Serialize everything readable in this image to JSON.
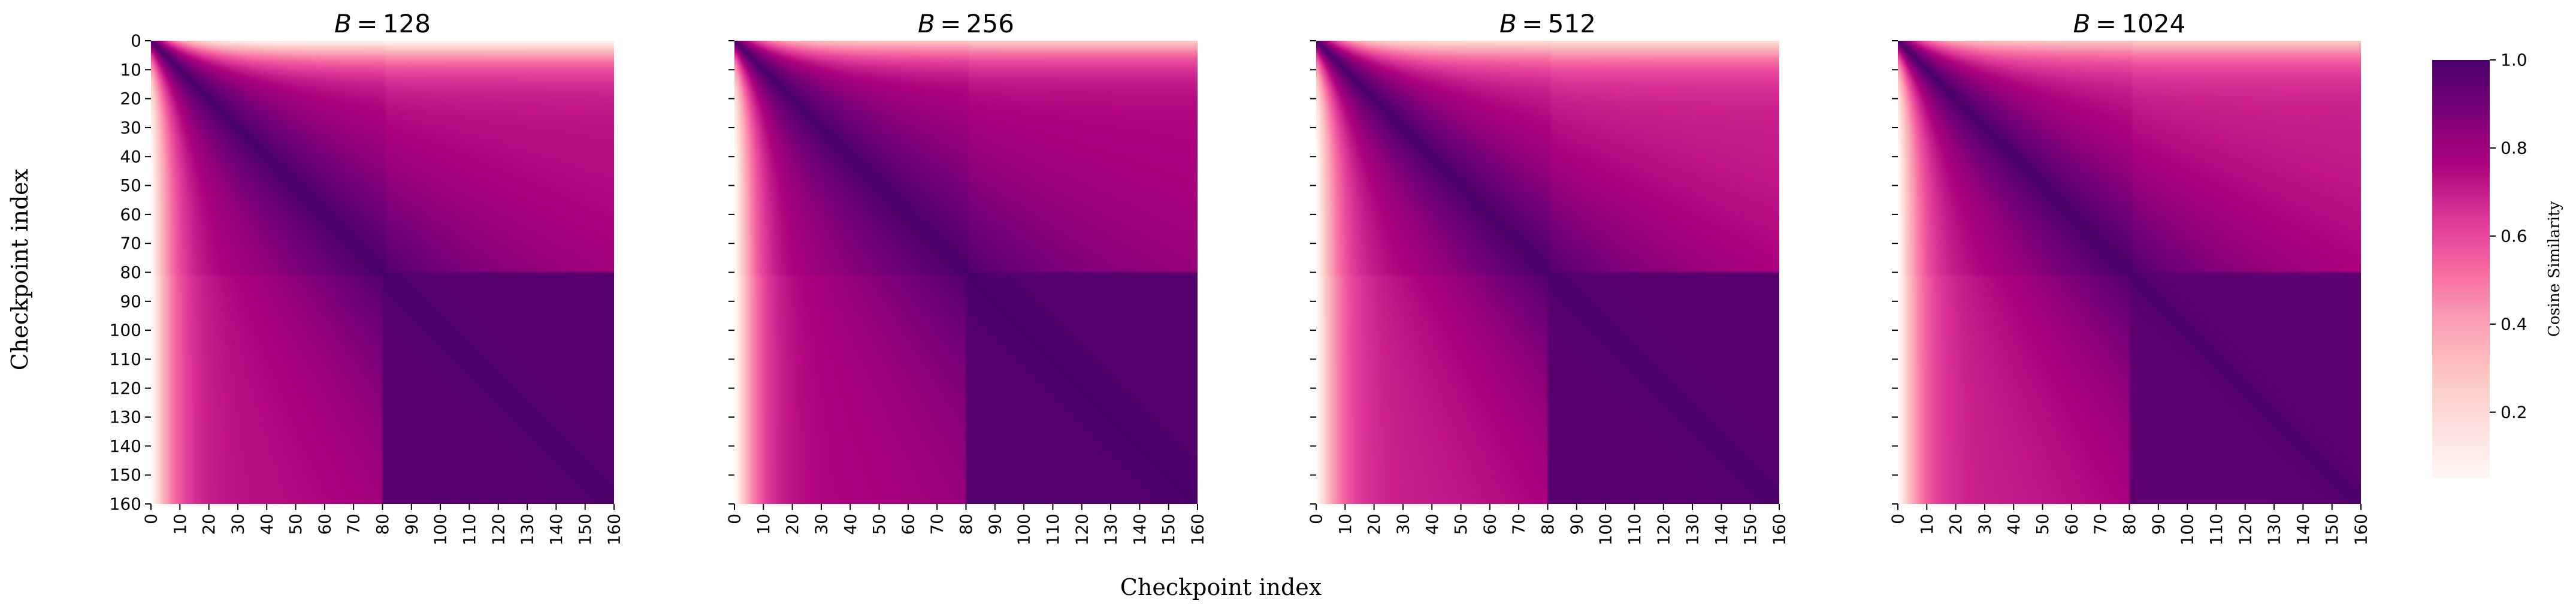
{
  "figure": {
    "ylabel": "Checkpoint index",
    "xlabel": "Checkpoint index"
  },
  "chart_data": [
    {
      "type": "heatmap",
      "title_var": "B",
      "title_value": "128",
      "xlabel": "Checkpoint index",
      "ylabel": "Checkpoint index",
      "n": 160,
      "switch_index": 80,
      "x_ticks": [
        "0",
        "10",
        "20",
        "30",
        "40",
        "50",
        "60",
        "70",
        "80",
        "90",
        "100",
        "110",
        "120",
        "130",
        "140",
        "150",
        "160"
      ],
      "y_ticks": [
        "0",
        "10",
        "20",
        "30",
        "40",
        "50",
        "60",
        "70",
        "80",
        "90",
        "100",
        "110",
        "120",
        "130",
        "140",
        "150",
        "160"
      ],
      "y_tick_labels_shown": true,
      "approx_similarity": {
        "row0_far": 0.1,
        "col0_far": 0.05,
        "diagonal": 1.0,
        "phase2_block": 0.97,
        "early_vs_late_plateau": 0.75
      }
    },
    {
      "type": "heatmap",
      "title_var": "B",
      "title_value": "256",
      "n": 160,
      "switch_index": 80,
      "x_ticks": [
        "0",
        "10",
        "20",
        "30",
        "40",
        "50",
        "60",
        "70",
        "80",
        "90",
        "100",
        "110",
        "120",
        "130",
        "140",
        "150",
        "160"
      ],
      "y_tick_labels_shown": false,
      "approx_similarity": {
        "row0_far": 0.3,
        "col0_far": 0.05,
        "diagonal": 1.0,
        "phase2_block": 0.98,
        "early_vs_late_plateau": 0.78
      }
    },
    {
      "type": "heatmap",
      "title_var": "B",
      "title_value": "512",
      "n": 160,
      "switch_index": 80,
      "x_ticks": [
        "0",
        "10",
        "20",
        "30",
        "40",
        "50",
        "60",
        "70",
        "80",
        "90",
        "100",
        "110",
        "120",
        "130",
        "140",
        "150",
        "160"
      ],
      "y_tick_labels_shown": false,
      "approx_similarity": {
        "row0_far": 0.2,
        "col0_far": 0.05,
        "diagonal": 1.0,
        "phase2_block": 0.97,
        "early_vs_late_plateau": 0.72
      }
    },
    {
      "type": "heatmap",
      "title_var": "B",
      "title_value": "1024",
      "n": 160,
      "switch_index": 80,
      "x_ticks": [
        "0",
        "10",
        "20",
        "30",
        "40",
        "50",
        "60",
        "70",
        "80",
        "90",
        "100",
        "110",
        "120",
        "130",
        "140",
        "150",
        "160"
      ],
      "y_tick_labels_shown": false,
      "approx_similarity": {
        "row0_far": 0.3,
        "col0_far": 0.05,
        "diagonal": 1.0,
        "phase2_block": 0.95,
        "early_vs_late_plateau": 0.72
      }
    }
  ],
  "colorbar": {
    "label": "Cosine Similarity",
    "range": [
      0.05,
      1.0
    ],
    "ticks": [
      {
        "value": 1.0,
        "label": "1.0"
      },
      {
        "value": 0.8,
        "label": "0.8"
      },
      {
        "value": 0.6,
        "label": "0.6"
      },
      {
        "value": 0.4,
        "label": "0.4"
      },
      {
        "value": 0.2,
        "label": "0.2"
      }
    ],
    "colormap": "RdPu",
    "colormap_stops": [
      "#fff7f3",
      "#fde0dd",
      "#fcc5c0",
      "#fa9fb5",
      "#f768a1",
      "#dd3497",
      "#ae017e",
      "#7a0177",
      "#49006a"
    ]
  }
}
